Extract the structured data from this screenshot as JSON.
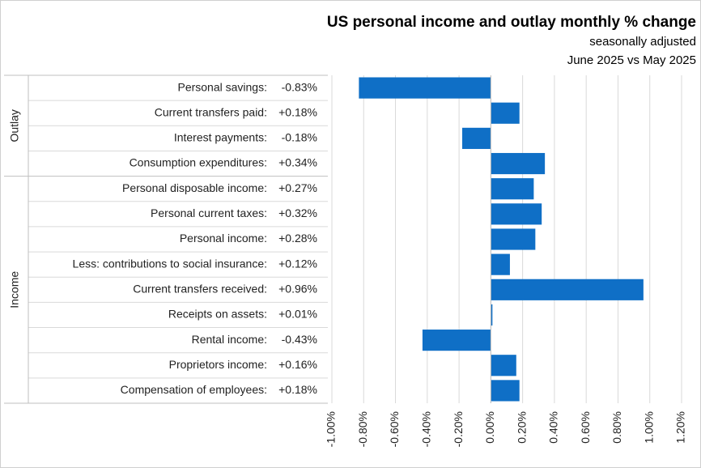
{
  "chart_data": {
    "type": "bar",
    "orientation": "horizontal",
    "title": "US personal income and outlay monthly % change",
    "subtitle": [
      "seasonally adjusted",
      "June 2025 vs May 2025"
    ],
    "categories": [
      "Personal savings:",
      "Current transfers paid:",
      "Interest payments:",
      "Consumption expenditures:",
      "Personal disposable income:",
      "Personal current taxes:",
      "Personal income:",
      "Less: contributions to social insurance:",
      "Current transfers received:",
      "Receipts on assets:",
      "Rental income:",
      "Proprietors income:",
      "Compensation of employees:"
    ],
    "values": [
      -0.83,
      0.18,
      -0.18,
      0.34,
      0.27,
      0.32,
      0.28,
      0.12,
      0.96,
      0.01,
      -0.43,
      0.16,
      0.18
    ],
    "value_labels": [
      "-0.83%",
      "+0.18%",
      "-0.18%",
      "+0.34%",
      "+0.27%",
      "+0.32%",
      "+0.28%",
      "+0.12%",
      "+0.96%",
      "+0.01%",
      "-0.43%",
      "+0.16%",
      "+0.18%"
    ],
    "groups": [
      {
        "label": "Outlay",
        "count": 4
      },
      {
        "label": "Income",
        "count": 9
      }
    ],
    "color": "#0f6fc6",
    "xlim": [
      -1,
      1.2
    ],
    "xticks": [
      {
        "value": -1,
        "label": "-1.00%"
      },
      {
        "value": -0.8,
        "label": "-0.80%"
      },
      {
        "value": -0.6,
        "label": "-0.60%"
      },
      {
        "value": -0.4,
        "label": "-0.40%"
      },
      {
        "value": -0.2,
        "label": "-0.20%"
      },
      {
        "value": 0,
        "label": "0.00%"
      },
      {
        "value": 0.2,
        "label": "0.20%"
      },
      {
        "value": 0.4,
        "label": "0.40%"
      },
      {
        "value": 0.6,
        "label": "0.60%"
      },
      {
        "value": 0.8,
        "label": "0.80%"
      },
      {
        "value": 1,
        "label": "1.00%"
      },
      {
        "value": 1.2,
        "label": "1.20%"
      }
    ],
    "grid": true
  }
}
